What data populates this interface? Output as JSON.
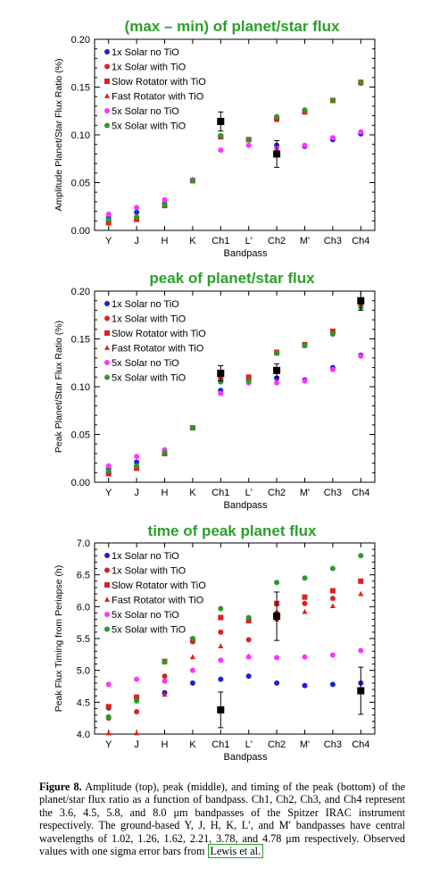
{
  "panels": [
    {
      "title": "(max – min) of planet/star flux",
      "ylabel": "Amplitude Planet/Star Flux Ratio (%)",
      "xlabel": "Bandpass"
    },
    {
      "title": "peak of planet/star flux",
      "ylabel": "Peak Planet/Star Flux Ratio (%)",
      "xlabel": "Bandpass"
    },
    {
      "title": "time of peak planet flux",
      "ylabel": "Peak Flux Timing from Periapse (h)",
      "xlabel": "Bandpass"
    }
  ],
  "legend": [
    {
      "name": "1x Solar no TiO",
      "color": "#1f1fdc",
      "marker": "circle"
    },
    {
      "name": "1x Solar with TiO",
      "color": "#e02020",
      "marker": "circle"
    },
    {
      "name": "Slow Rotator with TiO",
      "color": "#e02020",
      "marker": "square"
    },
    {
      "name": "Fast Rotator with TiO",
      "color": "#e02020",
      "marker": "triangle"
    },
    {
      "name": "5x Solar no TiO",
      "color": "#ff33ff",
      "marker": "circle"
    },
    {
      "name": "5x Solar with TiO",
      "color": "#2a9a2a",
      "marker": "circle"
    }
  ],
  "chart_data": [
    {
      "type": "scatter",
      "title": "(max – min) of planet/star flux",
      "xlabel": "Bandpass",
      "ylabel": "Amplitude Planet/Star Flux Ratio (%)",
      "categories": [
        "Y",
        "J",
        "H",
        "K",
        "Ch1",
        "L'",
        "Ch2",
        "M'",
        "Ch3",
        "Ch4"
      ],
      "ylim": [
        0.0,
        0.2
      ],
      "yticks": [
        "0.00",
        "0.05",
        "0.10",
        "0.15",
        "0.20"
      ],
      "legend_position": "top-left",
      "series": [
        {
          "name": "1x Solar no TiO",
          "values": [
            0.013,
            0.019,
            0.028,
            0.053,
            0.099,
            0.095,
            0.089,
            0.088,
            0.095,
            0.101
          ]
        },
        {
          "name": "1x Solar with TiO",
          "values": [
            0.009,
            0.012,
            0.026,
            0.052,
            0.098,
            0.095,
            0.116,
            0.124,
            0.136,
            0.154
          ]
        },
        {
          "name": "Slow Rotator with TiO",
          "values": [
            0.008,
            0.012,
            0.026,
            0.052,
            0.098,
            0.095,
            0.117,
            0.124,
            0.136,
            0.155
          ]
        },
        {
          "name": "Fast Rotator with TiO",
          "values": [
            0.008,
            0.011,
            0.026,
            0.052,
            0.098,
            0.095,
            0.116,
            0.124,
            0.136,
            0.155
          ]
        },
        {
          "name": "5x Solar no TiO",
          "values": [
            0.017,
            0.024,
            0.032,
            0.053,
            0.084,
            0.089,
            0.086,
            0.089,
            0.097,
            0.103
          ]
        },
        {
          "name": "5x Solar with TiO",
          "values": [
            0.011,
            0.014,
            0.027,
            0.052,
            0.099,
            0.095,
            0.119,
            0.126,
            0.136,
            0.155
          ]
        }
      ],
      "observed": [
        {
          "category": "Ch1",
          "value": 0.114,
          "error": 0.01
        },
        {
          "category": "Ch2",
          "value": 0.08,
          "error": 0.014
        }
      ]
    },
    {
      "type": "scatter",
      "title": "peak of planet/star flux",
      "xlabel": "Bandpass",
      "ylabel": "Peak Planet/Star Flux Ratio (%)",
      "categories": [
        "Y",
        "J",
        "H",
        "K",
        "Ch1",
        "L'",
        "Ch2",
        "M'",
        "Ch3",
        "Ch4"
      ],
      "ylim": [
        0.0,
        0.2
      ],
      "yticks": [
        "0.00",
        "0.05",
        "0.10",
        "0.15",
        "0.20"
      ],
      "legend_position": "top-left",
      "series": [
        {
          "name": "1x Solar no TiO",
          "values": [
            0.014,
            0.021,
            0.031,
            0.057,
            0.096,
            0.107,
            0.109,
            0.107,
            0.12,
            0.133
          ]
        },
        {
          "name": "1x Solar with TiO",
          "values": [
            0.01,
            0.015,
            0.03,
            0.057,
            0.108,
            0.109,
            0.135,
            0.143,
            0.157,
            0.186
          ]
        },
        {
          "name": "Slow Rotator with TiO",
          "values": [
            0.009,
            0.015,
            0.03,
            0.057,
            0.109,
            0.11,
            0.136,
            0.144,
            0.158,
            0.187
          ]
        },
        {
          "name": "Fast Rotator with TiO",
          "values": [
            0.009,
            0.014,
            0.03,
            0.057,
            0.109,
            0.11,
            0.135,
            0.143,
            0.157,
            0.187
          ]
        },
        {
          "name": "5x Solar no TiO",
          "values": [
            0.017,
            0.027,
            0.034,
            0.057,
            0.093,
            0.104,
            0.104,
            0.106,
            0.118,
            0.132
          ]
        },
        {
          "name": "5x Solar with TiO",
          "values": [
            0.012,
            0.017,
            0.031,
            0.057,
            0.105,
            0.106,
            0.135,
            0.143,
            0.155,
            0.183
          ]
        }
      ],
      "observed": [
        {
          "category": "Ch1",
          "value": 0.114,
          "error": 0.008
        },
        {
          "category": "Ch2",
          "value": 0.117,
          "error": 0.007
        },
        {
          "category": "Ch4",
          "value": 0.19,
          "error": 0.01
        }
      ]
    },
    {
      "type": "scatter",
      "title": "time of peak planet flux",
      "xlabel": "Bandpass",
      "ylabel": "Peak Flux Timing from Periapse (h)",
      "categories": [
        "Y",
        "J",
        "H",
        "K",
        "Ch1",
        "L'",
        "Ch2",
        "M'",
        "Ch3",
        "Ch4"
      ],
      "ylim": [
        4.0,
        7.0
      ],
      "yticks": [
        "4.0",
        "4.5",
        "5.0",
        "5.5",
        "6.0",
        "6.5",
        "7.0"
      ],
      "legend_position": "top-left",
      "series": [
        {
          "name": "1x Solar no TiO",
          "values": [
            4.41,
            4.55,
            4.65,
            4.8,
            4.86,
            4.91,
            4.8,
            4.76,
            4.78,
            4.8
          ]
        },
        {
          "name": "1x Solar with TiO",
          "values": [
            4.25,
            4.35,
            4.91,
            5.45,
            5.6,
            5.48,
            5.9,
            6.05,
            6.13,
            6.4
          ]
        },
        {
          "name": "Slow Rotator with TiO",
          "values": [
            4.43,
            4.58,
            5.14,
            5.48,
            5.83,
            5.78,
            6.05,
            6.15,
            6.25,
            6.4
          ]
        },
        {
          "name": "Fast Rotator with TiO",
          "values": [
            4.0,
            4.0,
            4.62,
            5.21,
            5.38,
            5.22,
            5.8,
            5.92,
            6.01,
            6.2
          ]
        },
        {
          "name": "5x Solar no TiO",
          "values": [
            4.78,
            4.86,
            4.83,
            5.0,
            5.16,
            5.21,
            5.2,
            5.21,
            5.24,
            5.31
          ]
        },
        {
          "name": "5x Solar with TiO",
          "values": [
            4.27,
            4.52,
            5.13,
            5.5,
            5.97,
            5.83,
            6.38,
            6.45,
            6.6,
            6.8
          ]
        }
      ],
      "observed": [
        {
          "category": "Ch1",
          "value": 4.38,
          "error": 0.28
        },
        {
          "category": "Ch2",
          "value": 5.85,
          "error": 0.38
        },
        {
          "category": "Ch4",
          "value": 4.68,
          "error": 0.37
        }
      ]
    }
  ],
  "caption": {
    "label": "Figure 8.",
    "text": "Amplitude (top), peak (middle), and timing of the peak (bottom) of the planet/star flux ratio as a function of bandpass. Ch1, Ch2, Ch3, and Ch4 represent the 3.6, 4.5, 5.8, and 8.0 μm bandpasses of the Spitzer IRAC instrument respectively. The ground-based Y, J, H, K, L′, and M′ bandpasses have central wavelengths of 1.02, 1.26, 1.62, 2.21, 3.78, and 4.78 μm respectively. Observed values with one sigma error bars from",
    "reference": "Lewis et al."
  }
}
